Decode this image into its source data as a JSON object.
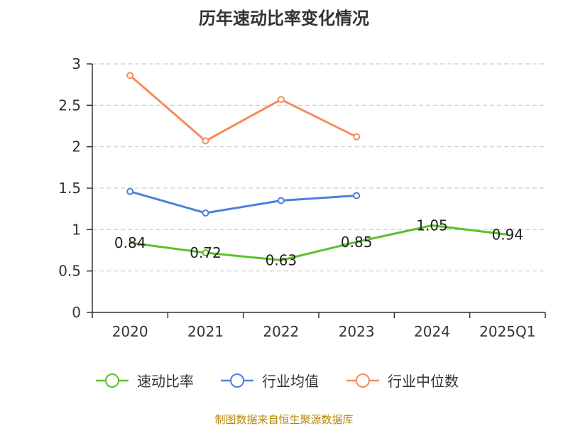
{
  "chart_data": {
    "type": "line",
    "title": "历年速动比率变化情况",
    "categories": [
      "2020",
      "2021",
      "2022",
      "2023",
      "2024",
      "2025Q1"
    ],
    "ylim": [
      0,
      3
    ],
    "yticks": [
      "0",
      "0.5",
      "1",
      "1.5",
      "2",
      "2.5",
      "3"
    ],
    "grid": true,
    "legend_position": "bottom",
    "series": [
      {
        "name": "速动比率",
        "color": "#5cc02b",
        "values": [
          0.84,
          0.72,
          0.63,
          0.85,
          1.05,
          0.94
        ],
        "labels": [
          "0.84",
          "0.72",
          "0.63",
          "0.85",
          "1.05",
          "0.94"
        ],
        "show_labels": true
      },
      {
        "name": "行业均值",
        "color": "#4e7fdb",
        "values": [
          1.46,
          1.2,
          1.35,
          1.41,
          null,
          null
        ],
        "show_labels": false
      },
      {
        "name": "行业中位数",
        "color": "#f78c59",
        "values": [
          2.86,
          2.07,
          2.57,
          2.12,
          null,
          null
        ],
        "show_labels": false
      }
    ],
    "source": "制图数据来自恒生聚源数据库"
  }
}
